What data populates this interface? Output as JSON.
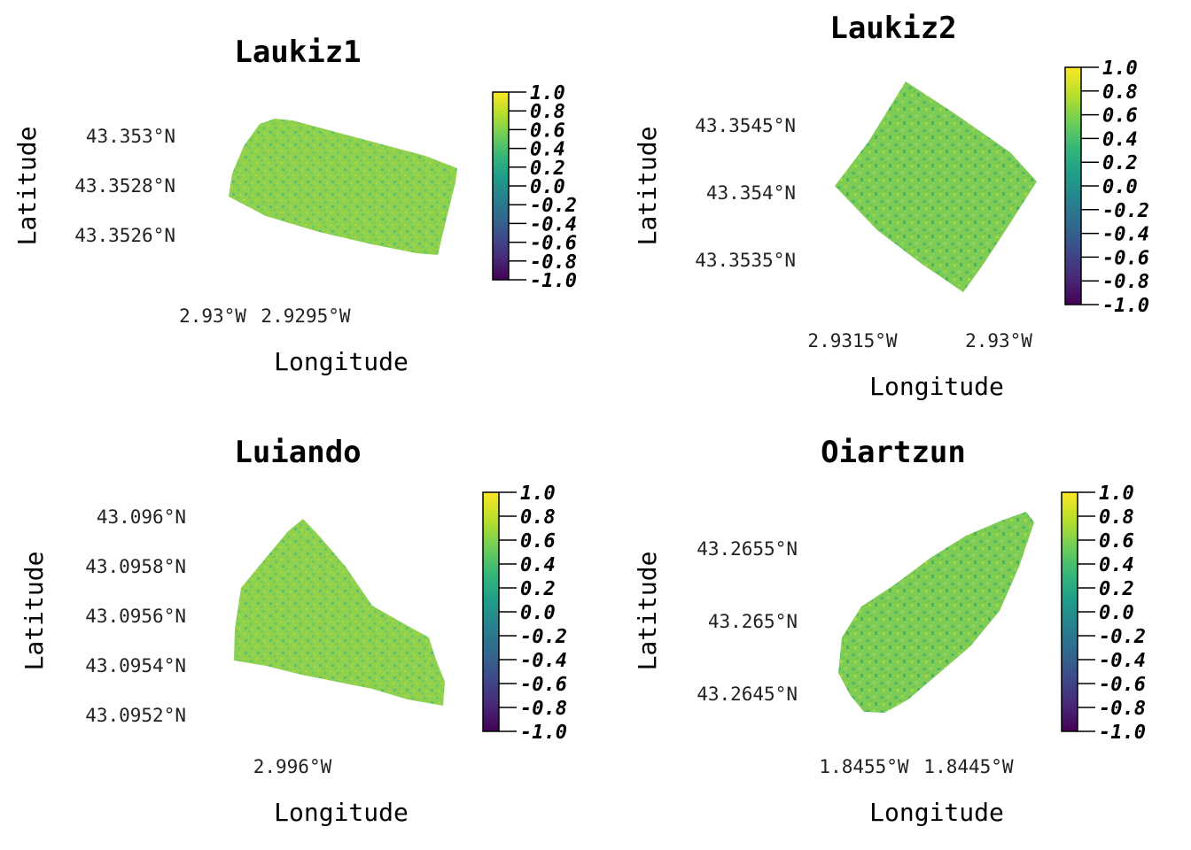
{
  "panels": [
    {
      "id": "laukiz1",
      "title": "Laukiz1",
      "xlabel": "Longitude",
      "ylabel": "Latitude",
      "x_ticks": [
        "2.93°W",
        "2.9295°W"
      ],
      "y_ticks": [
        "43.353°N",
        "43.3528°N",
        "43.3526°N"
      ],
      "colorbar": {
        "range": [
          -1.0,
          1.0
        ],
        "ticks": [
          "1.0",
          "0.8",
          "0.6",
          "0.4",
          "0.2",
          "0.0",
          "-0.2",
          "-0.4",
          "-0.6",
          "-0.8",
          "-1.0"
        ]
      }
    },
    {
      "id": "laukiz2",
      "title": "Laukiz2",
      "xlabel": "Longitude",
      "ylabel": "Latitude",
      "x_ticks": [
        "2.9315°W",
        "2.93°W"
      ],
      "y_ticks": [
        "43.3545°N",
        "43.354°N",
        "43.3535°N"
      ],
      "colorbar": {
        "range": [
          -1.0,
          1.0
        ],
        "ticks": [
          "1.0",
          "0.8",
          "0.6",
          "0.4",
          "0.2",
          "0.0",
          "-0.2",
          "-0.4",
          "-0.6",
          "-0.8",
          "-1.0"
        ]
      }
    },
    {
      "id": "luiando",
      "title": "Luiando",
      "xlabel": "Longitude",
      "ylabel": "Latitude",
      "x_ticks": [
        "2.996°W"
      ],
      "y_ticks": [
        "43.096°N",
        "43.0958°N",
        "43.0956°N",
        "43.0954°N",
        "43.0952°N"
      ],
      "colorbar": {
        "range": [
          -1.0,
          1.0
        ],
        "ticks": [
          "1.0",
          "0.8",
          "0.6",
          "0.4",
          "0.2",
          "0.0",
          "-0.2",
          "-0.4",
          "-0.6",
          "-0.8",
          "-1.0"
        ]
      }
    },
    {
      "id": "oiartzun",
      "title": "Oiartzun",
      "xlabel": "Longitude",
      "ylabel": "Latitude",
      "x_ticks": [
        "1.8455°W",
        "1.8445°W"
      ],
      "y_ticks": [
        "43.2655°N",
        "43.265°N",
        "43.2645°N"
      ],
      "colorbar": {
        "range": [
          -1.0,
          1.0
        ],
        "ticks": [
          "1.0",
          "0.8",
          "0.6",
          "0.4",
          "0.2",
          "0.0",
          "-0.2",
          "-0.4",
          "-0.6",
          "-0.8",
          "-1.0"
        ]
      }
    }
  ],
  "colors": {
    "viridis": [
      "#440154",
      "#482878",
      "#3e4989",
      "#31688e",
      "#26828e",
      "#1f9e89",
      "#35b779",
      "#6ece58",
      "#b5de2b",
      "#fde725"
    ],
    "field_main": "#8fd14f",
    "field_alt": "#4fba6b"
  }
}
